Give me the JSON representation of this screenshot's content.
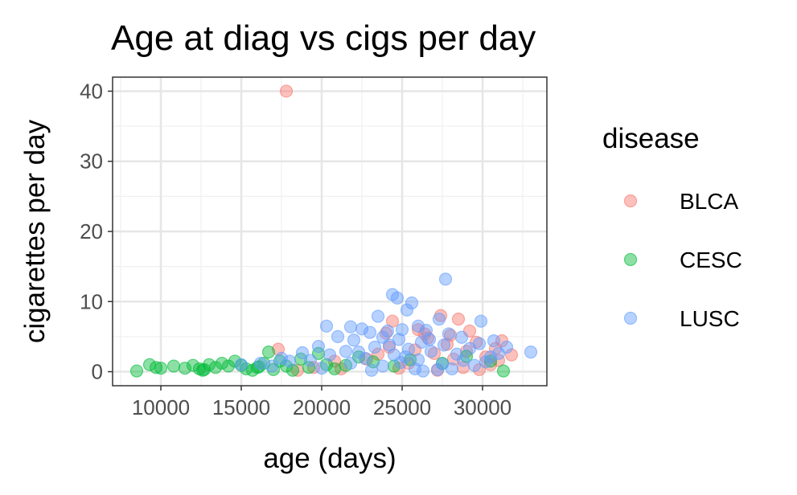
{
  "chart_data": {
    "type": "scatter",
    "title": "Age at diag vs cigs per day",
    "xlabel": "age (days)",
    "ylabel": "cigarettes per day",
    "xlim": [
      7000,
      34000
    ],
    "ylim": [
      -2,
      42
    ],
    "x_ticks": [
      10000,
      15000,
      20000,
      25000,
      30000
    ],
    "y_ticks": [
      0,
      10,
      20,
      30,
      40
    ],
    "grid": true,
    "legend": {
      "title": "disease",
      "position": "right"
    },
    "series": [
      {
        "name": "BLCA",
        "color": "#F8766D",
        "points": [
          [
            17800,
            40
          ],
          [
            17300,
            3.2
          ],
          [
            24400,
            7.2
          ],
          [
            27400,
            8.0
          ],
          [
            28500,
            7.5
          ],
          [
            29200,
            5.8
          ],
          [
            26000,
            6.0
          ],
          [
            24000,
            5.5
          ],
          [
            31200,
            4.4
          ],
          [
            31800,
            2.4
          ],
          [
            30800,
            3.3
          ],
          [
            29800,
            0.3
          ],
          [
            28200,
            1.8
          ],
          [
            27000,
            2.6
          ],
          [
            25400,
            1.2
          ],
          [
            22800,
            1.8
          ],
          [
            21200,
            0.4
          ],
          [
            19500,
            0.6
          ],
          [
            18500,
            0.2
          ],
          [
            26600,
            4.8
          ],
          [
            27800,
            3.9
          ],
          [
            30200,
            2.1
          ],
          [
            29000,
            2.9
          ],
          [
            28800,
            0.6
          ],
          [
            30500,
            1.0
          ],
          [
            25800,
            3.1
          ],
          [
            24800,
            0.5
          ],
          [
            23500,
            2.5
          ],
          [
            20800,
            1.5
          ],
          [
            31000,
            1.6
          ],
          [
            27200,
            0.2
          ],
          [
            26400,
            5.4
          ],
          [
            29600,
            4.2
          ],
          [
            28000,
            5.2
          ],
          [
            24200,
            3.5
          ]
        ]
      },
      {
        "name": "CESC",
        "color": "#00BA38",
        "points": [
          [
            8500,
            0.1
          ],
          [
            9300,
            1.0
          ],
          [
            9700,
            0.6
          ],
          [
            10000,
            0.5
          ],
          [
            10800,
            0.8
          ],
          [
            11500,
            0.5
          ],
          [
            12000,
            0.9
          ],
          [
            12400,
            0.4
          ],
          [
            12700,
            0.3
          ],
          [
            13000,
            1.0
          ],
          [
            13400,
            0.6
          ],
          [
            13800,
            1.2
          ],
          [
            14200,
            0.8
          ],
          [
            14600,
            1.5
          ],
          [
            15000,
            0.9
          ],
          [
            15300,
            0.4
          ],
          [
            15700,
            0.2
          ],
          [
            16100,
            0.7
          ],
          [
            16400,
            1.2
          ],
          [
            16700,
            2.8
          ],
          [
            17000,
            0.3
          ],
          [
            17400,
            1.5
          ],
          [
            17800,
            0.8
          ],
          [
            18200,
            0.2
          ],
          [
            18700,
            1.8
          ],
          [
            19200,
            0.6
          ],
          [
            19800,
            2.6
          ],
          [
            20300,
            1.0
          ],
          [
            20800,
            0.4
          ],
          [
            21500,
            0.9
          ],
          [
            22300,
            2.1
          ],
          [
            23200,
            1.4
          ],
          [
            24500,
            0.8
          ],
          [
            25500,
            1.7
          ],
          [
            27500,
            1.2
          ],
          [
            29000,
            2.2
          ],
          [
            30500,
            1.5
          ],
          [
            31300,
            0.1
          ],
          [
            12600,
            0.2
          ],
          [
            16000,
            0.6
          ]
        ]
      },
      {
        "name": "LUSC",
        "color": "#619CFF",
        "points": [
          [
            33000,
            2.8
          ],
          [
            27700,
            13.2
          ],
          [
            24400,
            11.0
          ],
          [
            24700,
            10.5
          ],
          [
            25600,
            9.8
          ],
          [
            25300,
            8.8
          ],
          [
            23500,
            7.9
          ],
          [
            27300,
            7.5
          ],
          [
            29900,
            7.2
          ],
          [
            26000,
            6.5
          ],
          [
            20300,
            6.5
          ],
          [
            21800,
            6.4
          ],
          [
            22500,
            6.1
          ],
          [
            23000,
            5.6
          ],
          [
            24100,
            5.8
          ],
          [
            25000,
            6.0
          ],
          [
            26500,
            5.9
          ],
          [
            27900,
            5.4
          ],
          [
            28700,
            4.9
          ],
          [
            30700,
            4.4
          ],
          [
            21000,
            5.0
          ],
          [
            19800,
            3.6
          ],
          [
            18800,
            2.7
          ],
          [
            18000,
            1.5
          ],
          [
            17500,
            1.9
          ],
          [
            16900,
            0.8
          ],
          [
            16200,
            1.2
          ],
          [
            15000,
            1.0
          ],
          [
            22000,
            4.5
          ],
          [
            23800,
            4.9
          ],
          [
            24800,
            4.6
          ],
          [
            26200,
            4.2
          ],
          [
            27600,
            3.8
          ],
          [
            29200,
            3.3
          ],
          [
            31000,
            2.6
          ],
          [
            30200,
            1.4
          ],
          [
            28400,
            2.5
          ],
          [
            26800,
            2.9
          ],
          [
            25400,
            3.2
          ],
          [
            23300,
            3.5
          ],
          [
            21500,
            2.9
          ],
          [
            20500,
            2.4
          ],
          [
            19300,
            1.6
          ],
          [
            22700,
            1.9
          ],
          [
            24500,
            2.4
          ],
          [
            26000,
            1.7
          ],
          [
            27500,
            1.1
          ],
          [
            29500,
            0.9
          ],
          [
            25800,
            0.4
          ],
          [
            23800,
            0.8
          ],
          [
            21800,
            1.2
          ],
          [
            20000,
            0.5
          ],
          [
            28800,
            1.6
          ],
          [
            30500,
            2.1
          ],
          [
            31500,
            3.5
          ],
          [
            24200,
            3.8
          ],
          [
            25200,
            2.1
          ],
          [
            26700,
            4.6
          ],
          [
            22300,
            2.8
          ],
          [
            27200,
            0.3
          ],
          [
            24900,
            1.3
          ],
          [
            23100,
            0.2
          ],
          [
            28100,
            0.4
          ],
          [
            29800,
            4.0
          ],
          [
            26300,
            0.1
          ]
        ]
      }
    ]
  }
}
